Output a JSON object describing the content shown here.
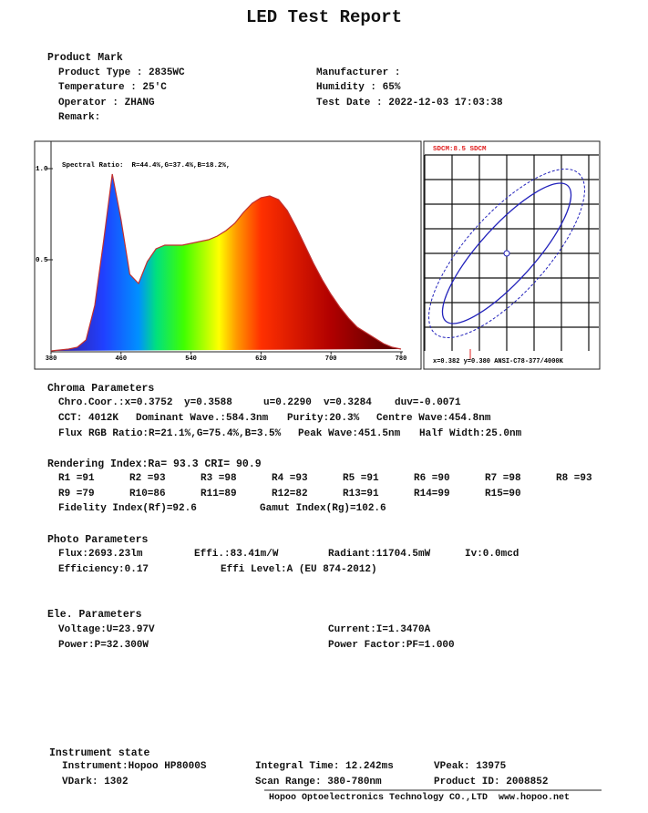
{
  "title": "LED Test Report",
  "product_mark": {
    "heading": "Product Mark",
    "product_type": "Product Type : 2835WC",
    "temperature": "Temperature : 25'C",
    "operator": "Operator : ZHANG",
    "remark": "Remark:",
    "manufacturer": "Manufacturer :",
    "humidity": "Humidity : 65%",
    "test_date": "Test Date : 2022-12-03 17:03:38"
  },
  "chart_data": {
    "type": "area",
    "subtitle": "Spectral Ratio:  R=44.4%,G=37.4%,B=18.2%,",
    "x": [
      380,
      390,
      400,
      410,
      420,
      430,
      440,
      450,
      460,
      470,
      480,
      490,
      500,
      510,
      520,
      530,
      540,
      550,
      560,
      570,
      580,
      590,
      600,
      610,
      620,
      630,
      640,
      650,
      660,
      670,
      680,
      690,
      700,
      710,
      720,
      730,
      740,
      750,
      760,
      770,
      780
    ],
    "values": [
      0,
      0.005,
      0.01,
      0.02,
      0.06,
      0.25,
      0.6,
      0.97,
      0.72,
      0.42,
      0.37,
      0.49,
      0.56,
      0.58,
      0.58,
      0.58,
      0.59,
      0.6,
      0.61,
      0.63,
      0.66,
      0.7,
      0.76,
      0.81,
      0.84,
      0.85,
      0.83,
      0.77,
      0.68,
      0.58,
      0.48,
      0.39,
      0.31,
      0.24,
      0.18,
      0.13,
      0.1,
      0.07,
      0.04,
      0.02,
      0.01
    ],
    "color": "#c03030",
    "xlim": [
      380,
      780
    ],
    "xticks": [
      380,
      460,
      540,
      620,
      700,
      780
    ],
    "ylim": [
      0,
      1.15
    ],
    "yticks": [
      0.5,
      {
        "value": 1,
        "label": "1.0"
      }
    ]
  },
  "sdcm": {
    "label": "SDCM:8.5 SDCM",
    "coords": "x=0.382 y=0.380 ANSI-C78-377/4000K"
  },
  "chroma": {
    "heading": "Chroma Parameters",
    "rows": [
      [
        "Chro.Coor.:x=0.3752",
        "y=0.3588",
        "u=0.2290",
        "v=0.3284",
        "duv=-0.0071"
      ],
      [
        "CCT: 4012K",
        "Dominant Wave.:584.3nm",
        "Purity:20.3%",
        "Centre Wave:454.8nm"
      ],
      [
        "Flux RGB Ratio:R=21.1%,G=75.4%,B=3.5%",
        "Peak Wave:451.5nm",
        "Half Width:25.0nm"
      ]
    ]
  },
  "rendering": {
    "heading": "Rendering Index:Ra= 93.3 CRI= 90.9",
    "r_values": [
      "R1 =91",
      "R2 =93",
      "R3 =98",
      "R4 =93",
      "R5 =91",
      "R6 =90",
      "R7 =98",
      "R8 =93",
      "R9 =79",
      "R10=86",
      "R11=89",
      "R12=82",
      "R13=91",
      "R14=99",
      "R15=90"
    ],
    "fidelity": "Fidelity Index(Rf)=92.6",
    "gamut": "Gamut Index(Rg)=102.6"
  },
  "photo": {
    "heading": "Photo Parameters",
    "rows": [
      [
        "Flux:2693.23lm",
        "Effi.:83.41m/W",
        "Radiant:11704.5mW",
        "Iv:0.0mcd"
      ],
      [
        "Efficiency:0.17",
        "Effi Level:A (EU 874-2012)"
      ]
    ]
  },
  "ele": {
    "heading": "Ele. Parameters",
    "rows": [
      [
        "Voltage:U=23.97V",
        "Current:I=1.3470A"
      ],
      [
        "Power:P=32.300W",
        "Power Factor:PF=1.000"
      ]
    ]
  },
  "instrument": {
    "heading": "Instrument state",
    "rows": [
      [
        "Instrument:Hopoo HP8000S",
        "Integral Time: 12.242ms",
        "VPeak: 13975"
      ],
      [
        "VDark: 1302",
        "Scan Range: 380-780nm",
        "Product ID: 2008852"
      ]
    ]
  },
  "footer": "Hopoo Optoelectronics Technology CO.,LTD  www.hopoo.net"
}
